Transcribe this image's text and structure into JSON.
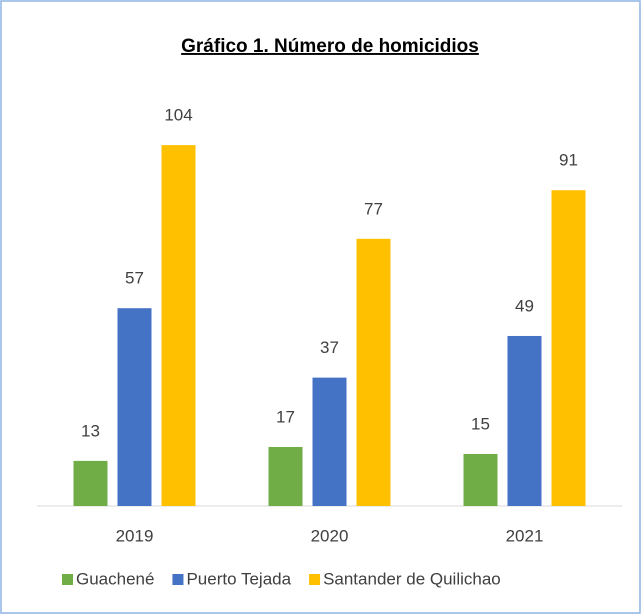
{
  "chart_data": {
    "type": "bar",
    "title": "Gráfico 1. Número de homicidios",
    "categories": [
      "2019",
      "2020",
      "2021"
    ],
    "series": [
      {
        "name": "Guachené",
        "color": "#70ad47",
        "values": [
          13,
          17,
          15
        ]
      },
      {
        "name": "Puerto Tejada",
        "color": "#4472c4",
        "values": [
          57,
          37,
          49
        ]
      },
      {
        "name": "Santander de Quilichao",
        "color": "#ffc000",
        "values": [
          104,
          77,
          91
        ]
      }
    ],
    "legend": "bottom",
    "grid": false
  }
}
